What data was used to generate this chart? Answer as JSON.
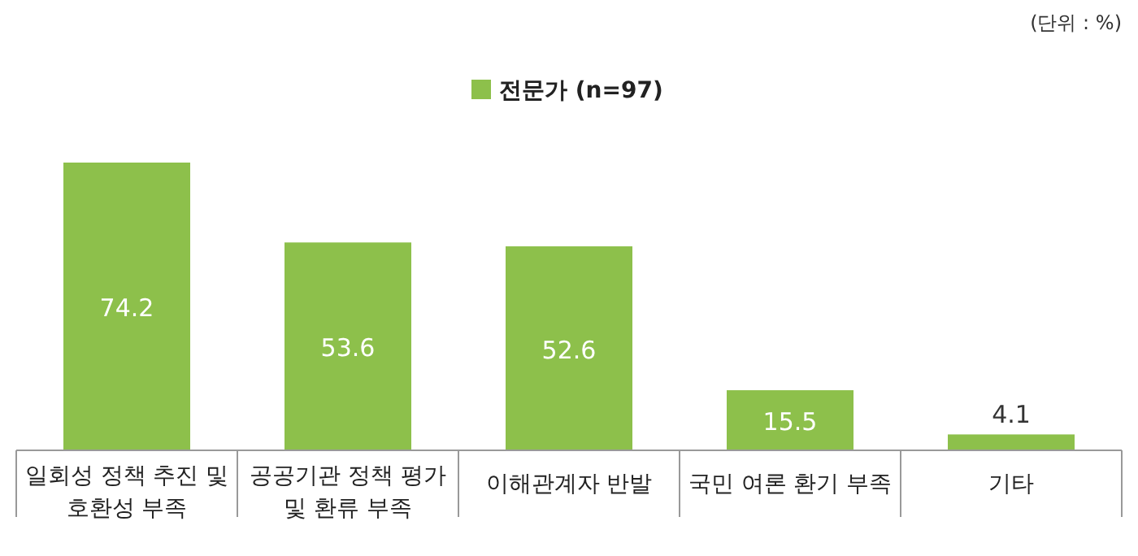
{
  "chart_data": {
    "type": "bar",
    "categories": [
      "일회성 정책 추진 및 호환성 부족",
      "공공기관 정책 평가 및 환류 부족",
      "이해관계자 반발",
      "국민 여론 환기 부족",
      "기타"
    ],
    "series": [
      {
        "name": "전문가 (n=97)",
        "color": "#8dc04b",
        "values": [
          74.2,
          53.6,
          52.6,
          15.5,
          4.1
        ]
      }
    ],
    "data_labels": true,
    "legend": "top",
    "annotations": [
      "(단위 : %)"
    ]
  }
}
